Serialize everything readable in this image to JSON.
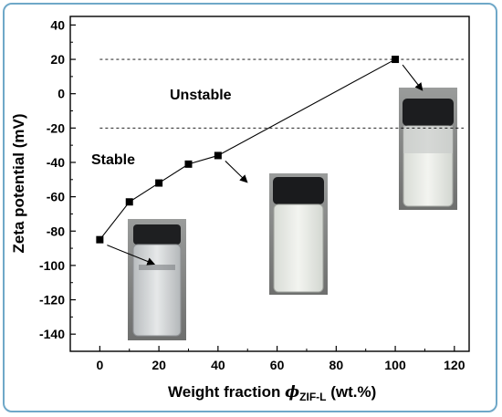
{
  "chart_data": {
    "type": "line",
    "title": "",
    "xlabel_main": "Weight fraction ",
    "xlabel_symbol": "ϕ",
    "xlabel_subscript": "ZIF-L",
    "xlabel_unit": " (wt.%)",
    "ylabel": "Zeta potential (mV)",
    "xlim": [
      -10,
      125
    ],
    "ylim": [
      -150,
      45
    ],
    "x_ticks": [
      0,
      20,
      40,
      60,
      80,
      100,
      120
    ],
    "y_ticks": [
      40,
      20,
      0,
      -20,
      -40,
      -60,
      -80,
      -100,
      -120,
      -140
    ],
    "grid": false,
    "series": [
      {
        "x": [
          0,
          10,
          20,
          30,
          40,
          100
        ],
        "y": [
          -85,
          -63,
          -52,
          -41,
          -36,
          20
        ],
        "marker": "square",
        "color": "#000000"
      }
    ],
    "reference_lines": [
      20,
      -20
    ],
    "annotations": {
      "unstable": "Unstable",
      "stable": "Stable"
    }
  }
}
